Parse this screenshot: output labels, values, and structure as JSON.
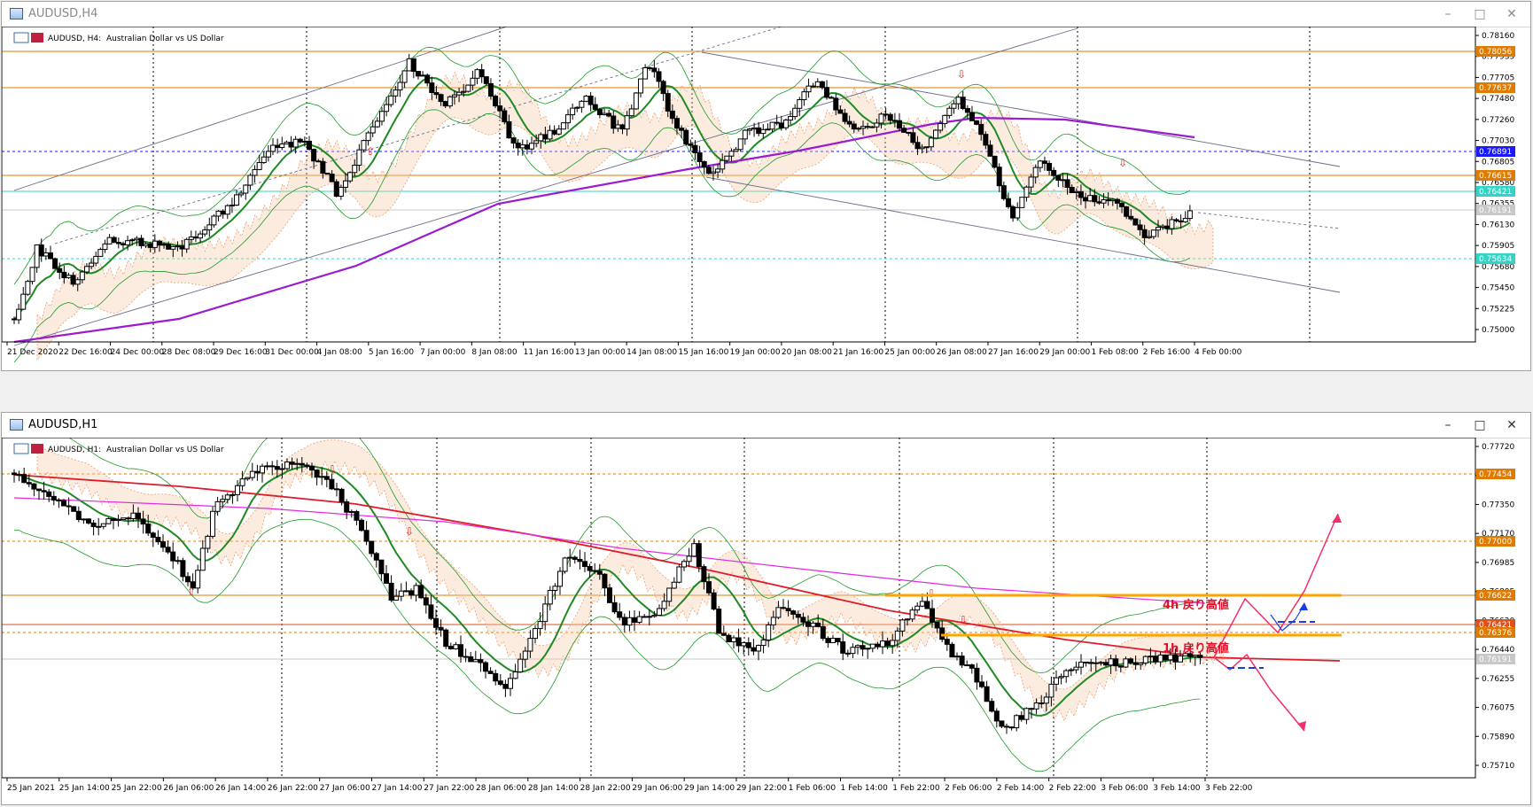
{
  "windows": [
    {
      "title": "AUDUSD,H4",
      "active": false,
      "info_symbol": "AUDUSD, H4:",
      "info_desc": "Australian Dollar vs US Dollar",
      "price_axis": [
        "0.78160",
        "0.77935",
        "0.77705",
        "0.77480",
        "0.77260",
        "0.77030",
        "0.76805",
        "0.76580",
        "0.76355",
        "0.76130",
        "0.75905",
        "0.75680",
        "0.75450",
        "0.75225",
        "0.75000"
      ],
      "price_tags": [
        {
          "value": "0.78056",
          "color": "#e07b00"
        },
        {
          "value": "0.77637",
          "color": "#e07b00"
        },
        {
          "value": "0.76891",
          "color": "#1a1aff"
        },
        {
          "value": "0.76615",
          "color": "#e07b00"
        },
        {
          "value": "0.76421",
          "color": "#30d5c8"
        },
        {
          "value": "0.76191",
          "color": "#c8c8c8"
        },
        {
          "value": "0.75634",
          "color": "#30d5c8"
        }
      ],
      "time_axis": [
        "21 Dec 2020",
        "22 Dec 16:00",
        "24 Dec 00:00",
        "28 Dec 08:00",
        "29 Dec 16:00",
        "31 Dec 00:00",
        "4 Jan 08:00",
        "5 Jan 16:00",
        "7 Jan 00:00",
        "8 Jan 08:00",
        "11 Jan 16:00",
        "13 Jan 00:00",
        "14 Jan 08:00",
        "15 Jan 16:00",
        "19 Jan 00:00",
        "20 Jan 08:00",
        "21 Jan 16:00",
        "25 Jan 00:00",
        "26 Jan 08:00",
        "27 Jan 16:00",
        "29 Jan 00:00",
        "1 Feb 08:00",
        "2 Feb 16:00",
        "4 Feb 00:00"
      ]
    },
    {
      "title": "AUDUSD,H1",
      "active": true,
      "info_symbol": "AUDUSD, H1:",
      "info_desc": "Australian Dollar vs US Dollar",
      "price_axis": [
        "0.77720",
        "0.77530",
        "0.77350",
        "0.77170",
        "0.76985",
        "0.76805",
        "0.76620",
        "0.76440",
        "0.76255",
        "0.76075",
        "0.75890",
        "0.75710"
      ],
      "price_tags": [
        {
          "value": "0.77454",
          "color": "#e07b00"
        },
        {
          "value": "0.77000",
          "color": "#e07b00"
        },
        {
          "value": "0.76622",
          "color": "#e07b00"
        },
        {
          "value": "0.76421",
          "color": "#e0501a"
        },
        {
          "value": "0.76376",
          "color": "#e07b00"
        },
        {
          "value": "0.76191",
          "color": "#c8c8c8"
        }
      ],
      "time_axis": [
        "25 Jan 2021",
        "25 Jan 14:00",
        "25 Jan 22:00",
        "26 Jan 06:00",
        "26 Jan 14:00",
        "26 Jan 22:00",
        "27 Jan 06:00",
        "27 Jan 14:00",
        "27 Jan 22:00",
        "28 Jan 06:00",
        "28 Jan 14:00",
        "28 Jan 22:00",
        "29 Jan 06:00",
        "29 Jan 14:00",
        "29 Jan 22:00",
        "1 Feb 06:00",
        "1 Feb 14:00",
        "1 Feb 22:00",
        "2 Feb 06:00",
        "2 Feb 14:00",
        "2 Feb 22:00",
        "3 Feb 06:00",
        "3 Feb 14:00",
        "3 Feb 22:00"
      ],
      "annotations": {
        "h4_high": "4h 戻り高値",
        "h1_high": "1h 戻り高値"
      }
    }
  ],
  "icons": {
    "minimize": "minimize-icon",
    "maximize": "maximize-icon",
    "close": "close-icon"
  }
}
